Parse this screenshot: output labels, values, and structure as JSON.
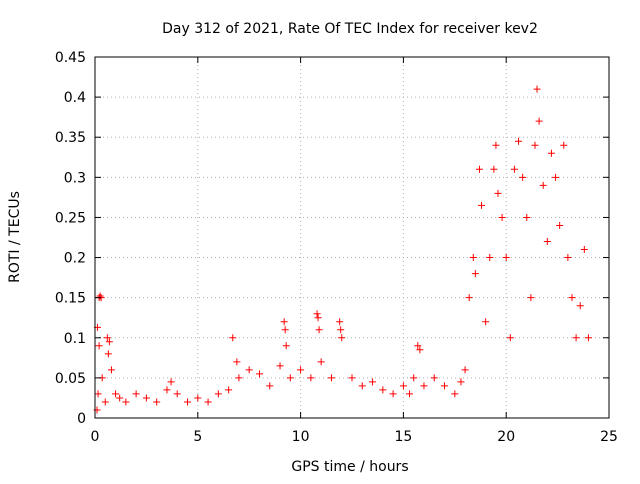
{
  "chart_data": {
    "type": "scatter",
    "title": "Day 312 of 2021, Rate Of TEC Index for receiver kev2",
    "xlabel": "GPS time / hours",
    "ylabel": "ROTI / TECUs",
    "xlim": [
      0,
      25
    ],
    "ylim": [
      0,
      0.45
    ],
    "xticks": [
      0,
      5,
      10,
      15,
      20,
      25
    ],
    "yticks": [
      0,
      0.05,
      0.1,
      0.15,
      0.2,
      0.25,
      0.3,
      0.35,
      0.4,
      0.45
    ],
    "xtick_labels": [
      "0",
      "5",
      "10",
      "15",
      "20",
      "25"
    ],
    "ytick_labels": [
      "0",
      "0.05",
      "0.1",
      "0.15",
      "0.2",
      "0.25",
      "0.3",
      "0.35",
      "0.4",
      "0.45"
    ],
    "grid": true,
    "marker": "+",
    "color": "#ff0000",
    "series": [
      {
        "name": "ROTI",
        "points": [
          [
            0.1,
            0.01
          ],
          [
            0.15,
            0.03
          ],
          [
            0.2,
            0.15
          ],
          [
            0.25,
            0.152
          ],
          [
            0.3,
            0.15
          ],
          [
            0.12,
            0.113
          ],
          [
            0.2,
            0.09
          ],
          [
            0.35,
            0.05
          ],
          [
            0.5,
            0.02
          ],
          [
            0.6,
            0.1
          ],
          [
            0.65,
            0.08
          ],
          [
            0.7,
            0.095
          ],
          [
            0.8,
            0.06
          ],
          [
            1.0,
            0.03
          ],
          [
            1.2,
            0.025
          ],
          [
            1.5,
            0.02
          ],
          [
            2.0,
            0.03
          ],
          [
            2.5,
            0.025
          ],
          [
            3.0,
            0.02
          ],
          [
            3.5,
            0.035
          ],
          [
            3.7,
            0.045
          ],
          [
            4.0,
            0.03
          ],
          [
            4.5,
            0.02
          ],
          [
            5.0,
            0.025
          ],
          [
            5.5,
            0.02
          ],
          [
            6.0,
            0.03
          ],
          [
            6.5,
            0.035
          ],
          [
            6.7,
            0.1
          ],
          [
            6.9,
            0.07
          ],
          [
            7.0,
            0.05
          ],
          [
            7.5,
            0.06
          ],
          [
            8.0,
            0.055
          ],
          [
            8.5,
            0.04
          ],
          [
            9.0,
            0.065
          ],
          [
            9.2,
            0.12
          ],
          [
            9.25,
            0.11
          ],
          [
            9.3,
            0.09
          ],
          [
            9.5,
            0.05
          ],
          [
            10.0,
            0.06
          ],
          [
            10.5,
            0.05
          ],
          [
            10.8,
            0.13
          ],
          [
            10.85,
            0.125
          ],
          [
            10.9,
            0.11
          ],
          [
            11.0,
            0.07
          ],
          [
            11.5,
            0.05
          ],
          [
            11.9,
            0.12
          ],
          [
            11.95,
            0.11
          ],
          [
            12.0,
            0.1
          ],
          [
            12.5,
            0.05
          ],
          [
            13.0,
            0.04
          ],
          [
            13.5,
            0.045
          ],
          [
            14.0,
            0.035
          ],
          [
            14.5,
            0.03
          ],
          [
            15.0,
            0.04
          ],
          [
            15.3,
            0.03
          ],
          [
            15.5,
            0.05
          ],
          [
            15.7,
            0.09
          ],
          [
            15.8,
            0.085
          ],
          [
            16.0,
            0.04
          ],
          [
            16.5,
            0.05
          ],
          [
            17.0,
            0.04
          ],
          [
            17.5,
            0.03
          ],
          [
            17.8,
            0.045
          ],
          [
            18.0,
            0.06
          ],
          [
            18.2,
            0.15
          ],
          [
            18.4,
            0.2
          ],
          [
            18.5,
            0.18
          ],
          [
            18.7,
            0.31
          ],
          [
            18.8,
            0.265
          ],
          [
            19.0,
            0.12
          ],
          [
            19.2,
            0.2
          ],
          [
            19.4,
            0.31
          ],
          [
            19.5,
            0.34
          ],
          [
            19.6,
            0.28
          ],
          [
            19.8,
            0.25
          ],
          [
            20.0,
            0.2
          ],
          [
            20.2,
            0.1
          ],
          [
            20.4,
            0.31
          ],
          [
            20.6,
            0.345
          ],
          [
            20.8,
            0.3
          ],
          [
            21.0,
            0.25
          ],
          [
            21.2,
            0.15
          ],
          [
            21.4,
            0.34
          ],
          [
            21.5,
            0.41
          ],
          [
            21.6,
            0.37
          ],
          [
            21.8,
            0.29
          ],
          [
            22.0,
            0.22
          ],
          [
            22.2,
            0.33
          ],
          [
            22.4,
            0.3
          ],
          [
            22.6,
            0.24
          ],
          [
            22.8,
            0.34
          ],
          [
            23.0,
            0.2
          ],
          [
            23.2,
            0.15
          ],
          [
            23.4,
            0.1
          ],
          [
            23.6,
            0.14
          ],
          [
            23.8,
            0.21
          ],
          [
            24.0,
            0.1
          ]
        ]
      }
    ]
  }
}
